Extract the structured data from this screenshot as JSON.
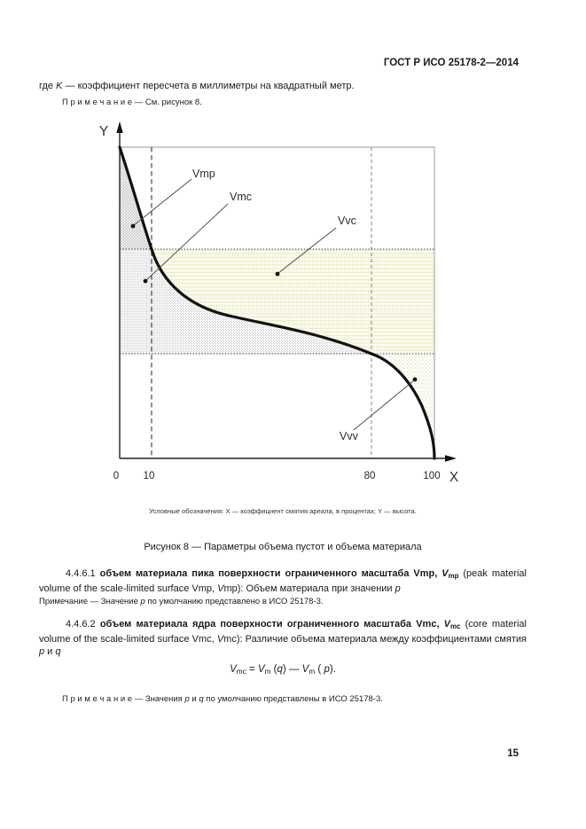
{
  "page": {
    "header": "ГОСТ Р ИСО 25178-2—2014",
    "number": "15"
  },
  "intro": {
    "where_runs": [
      {
        "t": "где "
      },
      {
        "t": "K",
        "i": 1
      },
      {
        "t": " — коэффициент пересчета в миллиметры на квадратный метр."
      }
    ],
    "note": "П р и м е ч а н и е  — См. рисунок 8."
  },
  "figure": {
    "labels": {
      "y_axis": "Y",
      "x_axis": "X",
      "vmp": "Vmp",
      "vmc": "Vmc",
      "vvc": "Vvc",
      "vvv": "Vvv"
    },
    "ticks": [
      "0",
      "10",
      "80",
      "100"
    ],
    "legend": "Условные обозначения: X — коэффициент смятия ареала, в процентах; Y — высота.",
    "caption": "Рисунок 8 — Параметры объема пустот и объема материала",
    "chart_data": {
      "type": "line",
      "title": "Рисунок 8 — Параметры объема пустот и объема материала",
      "xlabel": "X — коэффициент смятия ареала, в процентах",
      "ylabel": "Y — высота",
      "x_ticks": [
        0,
        10,
        80,
        100
      ],
      "xlim": [
        0,
        100
      ],
      "p_percent": 10,
      "q_percent": 80,
      "curve_points_percent": [
        [
          0,
          100
        ],
        [
          10,
          67
        ],
        [
          20,
          52
        ],
        [
          35,
          46
        ],
        [
          50,
          43
        ],
        [
          65,
          40
        ],
        [
          80,
          34
        ],
        [
          88,
          25
        ],
        [
          95,
          13
        ],
        [
          100,
          0
        ]
      ],
      "region_labels": [
        "Vmp",
        "Vmc",
        "Vvc",
        "Vvv"
      ],
      "grid": false,
      "legend_position": "none"
    },
    "colors": {
      "hatch_gray": "#8c8c8c",
      "stipple_gray": "#a0a0a0",
      "yellow_stripe": "#ececb0",
      "yellow_dot": "#e9e9a6",
      "curve_black": "#111111",
      "box_gray": "#9a9a9a"
    }
  },
  "sections": {
    "s1": {
      "runs": [
        {
          "t": "4.4.6.1 "
        },
        {
          "t": "объем материала пика поверхности ограниченного масштаба Vmp, ",
          "b": 1
        },
        {
          "t": "V",
          "b": 1,
          "i": 1
        },
        {
          "t": "mp",
          "b": 1,
          "sub": 1
        },
        {
          "t": " (peak material volume of the scale-limited surface Vmp, "
        },
        {
          "t": "V",
          "i": 1
        },
        {
          "t": "mp): Объем материала при значении "
        },
        {
          "t": "p",
          "i": 1
        }
      ]
    },
    "s1_note": {
      "runs": [
        {
          "t": "Примечание — Значение "
        },
        {
          "t": "p",
          "i": 1
        },
        {
          "t": " по умолчанию представлено в ИСО 25178-3."
        }
      ]
    },
    "s2": {
      "runs": [
        {
          "t": "4.4.6.2 "
        },
        {
          "t": "объем материала ядра поверхности ограниченного масштаба Vmc, ",
          "b": 1
        },
        {
          "t": "V",
          "b": 1,
          "i": 1
        },
        {
          "t": "mc",
          "b": 1,
          "sub": 1
        },
        {
          "t": " (core material volume of the scale-limited surface Vmc, "
        },
        {
          "t": "V",
          "i": 1
        },
        {
          "t": "mc): Различие объема материала между коэффициентами смятия "
        },
        {
          "t": "p",
          "i": 1
        },
        {
          "t": " и "
        },
        {
          "t": "q",
          "i": 1
        }
      ]
    },
    "formula": {
      "runs": [
        {
          "t": "V",
          "i": 1
        },
        {
          "t": "mc",
          "sub": 1
        },
        {
          "t": " = "
        },
        {
          "t": "V",
          "i": 1
        },
        {
          "t": "m",
          "sub": 1
        },
        {
          "t": " ("
        },
        {
          "t": "q",
          "i": 1
        },
        {
          "t": ") — "
        },
        {
          "t": "V",
          "i": 1
        },
        {
          "t": "m",
          "sub": 1
        },
        {
          "t": " ( "
        },
        {
          "t": "p",
          "i": 1
        },
        {
          "t": ")."
        }
      ]
    },
    "s2_note": {
      "runs": [
        {
          "t": "П р и м е ч а н и е  — Значения "
        },
        {
          "t": "p",
          "i": 1
        },
        {
          "t": " и "
        },
        {
          "t": "q",
          "i": 1
        },
        {
          "t": " по умолчанию представлены в ИСО 25178-3."
        }
      ]
    }
  }
}
